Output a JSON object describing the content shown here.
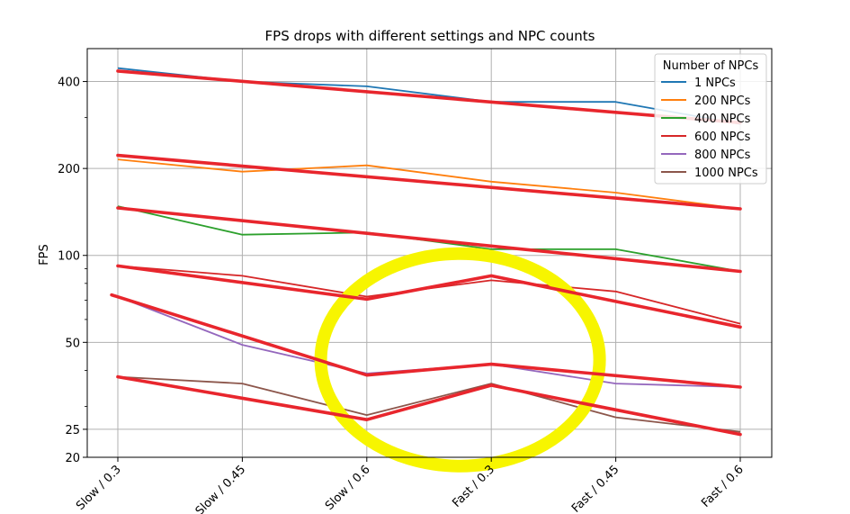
{
  "chart_data": {
    "type": "line",
    "title": "FPS drops with different settings and NPC counts",
    "xlabel": "",
    "ylabel": "FPS",
    "y_scale": "log",
    "ylim": [
      20,
      520
    ],
    "grid": true,
    "categories": [
      "Slow / 0.3",
      "Slow / 0.45",
      "Slow / 0.6",
      "Fast / 0.3",
      "Fast / 0.45",
      "Fast / 0.6"
    ],
    "y_ticks": [
      20,
      25,
      50,
      100,
      200,
      400
    ],
    "y_tick_labels": [
      "20",
      "25",
      "50",
      "100",
      "200",
      "400"
    ],
    "legend": {
      "title": "Number of NPCs",
      "placement": "top-right"
    },
    "series": [
      {
        "name": "1 NPCs",
        "color": "#1f77b4",
        "values": [
          445,
          400,
          385,
          340,
          340,
          285
        ]
      },
      {
        "name": "200 NPCs",
        "color": "#ff7f0e",
        "values": [
          215,
          195,
          205,
          180,
          165,
          145
        ]
      },
      {
        "name": "400 NPCs",
        "color": "#2ca02c",
        "values": [
          148,
          118,
          120,
          105,
          105,
          88
        ]
      },
      {
        "name": "600 NPCs",
        "color": "#d62728",
        "values": [
          92,
          85,
          72,
          82,
          75,
          58
        ]
      },
      {
        "name": "800 NPCs",
        "color": "#9467bd",
        "values": [
          72,
          49,
          39,
          42,
          36,
          35
        ]
      },
      {
        "name": "1000 NPCs",
        "color": "#8c564b",
        "values": [
          38,
          36,
          28,
          36,
          27.5,
          24.5
        ]
      }
    ],
    "annotations": {
      "overlay_stroke_color": "#e8262d",
      "overlay_highlight_color": "#f7f500",
      "overlay_strokes": [
        {
          "label": "stroke-1",
          "points": [
            [
              0,
              435
            ],
            [
              5,
              288
            ]
          ]
        },
        {
          "label": "stroke-2",
          "points": [
            [
              0,
              222
            ],
            [
              5,
              145
            ]
          ]
        },
        {
          "label": "stroke-3",
          "points": [
            [
              0,
              146
            ],
            [
              5,
              88
            ]
          ]
        },
        {
          "label": "stroke-4",
          "points": [
            [
              0,
              92
            ],
            [
              2,
              70.5
            ],
            [
              3,
              85
            ],
            [
              5,
              56.5
            ]
          ]
        },
        {
          "label": "stroke-5",
          "points": [
            [
              -0.05,
              73
            ],
            [
              2,
              38.5
            ],
            [
              3,
              42
            ],
            [
              5,
              35
            ]
          ]
        },
        {
          "label": "stroke-6",
          "points": [
            [
              0,
              38
            ],
            [
              2,
              27
            ],
            [
              3,
              35.5
            ],
            [
              5,
              24
            ]
          ]
        }
      ],
      "highlight_circle": {
        "center_category": 2.75,
        "center_value": 43.5
      }
    }
  }
}
